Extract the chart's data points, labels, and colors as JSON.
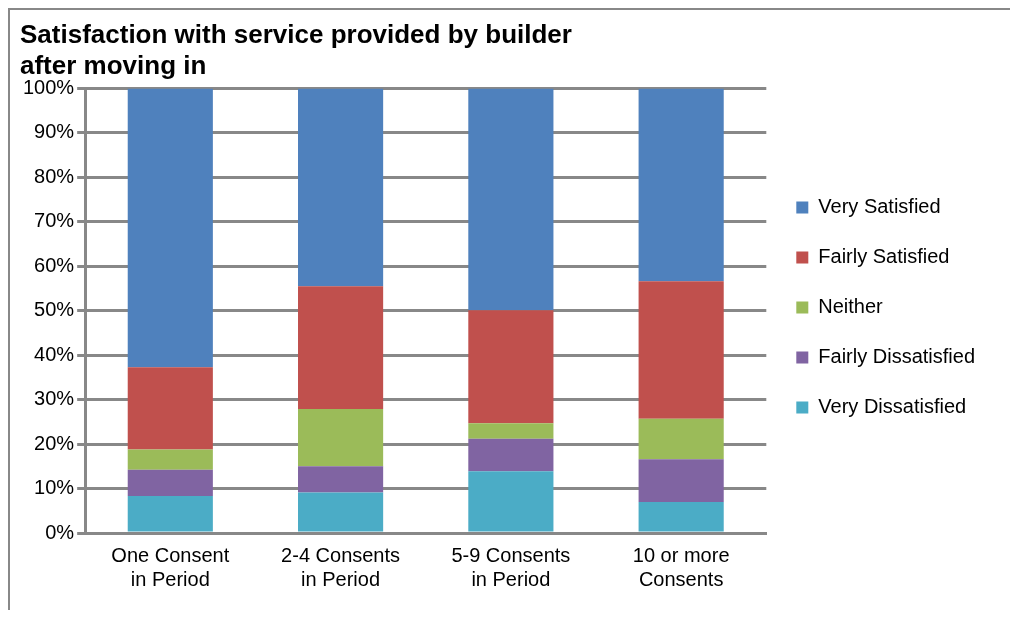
{
  "chart_data": {
    "type": "bar",
    "title": "Satisfaction with service provided by builder after moving in",
    "categories": [
      "One Consent in Period",
      "2-4 Consents in Period",
      "5-9 Consents in Period",
      "10 or more Consents"
    ],
    "stacked": true,
    "ylim": [
      0,
      100
    ],
    "yticks": [
      {
        "value": 0,
        "label": "0%"
      },
      {
        "value": 10,
        "label": "10%"
      },
      {
        "value": 20,
        "label": "20%"
      },
      {
        "value": 30,
        "label": "30%"
      },
      {
        "value": 40,
        "label": "40%"
      },
      {
        "value": 50,
        "label": "50%"
      },
      {
        "value": 60,
        "label": "60%"
      },
      {
        "value": 70,
        "label": "70%"
      },
      {
        "value": 80,
        "label": "80%"
      },
      {
        "value": 90,
        "label": "90%"
      },
      {
        "value": 100,
        "label": "100%"
      }
    ],
    "grid": "y",
    "legend": "right",
    "series": [
      {
        "name": "Very Dissatisfied",
        "color": "#4bacc6",
        "values": [
          8.3,
          9.1,
          13.9,
          7.0
        ]
      },
      {
        "name": "Fairly Dissatisfied",
        "color": "#8064a2",
        "values": [
          5.9,
          5.9,
          7.3,
          9.6
        ]
      },
      {
        "name": "Neither",
        "color": "#9bbb59",
        "values": [
          4.6,
          12.9,
          3.5,
          9.1
        ]
      },
      {
        "name": "Fairly Satisfied",
        "color": "#c0504d",
        "values": [
          18.5,
          27.6,
          25.4,
          30.9
        ]
      },
      {
        "name": "Very Satisfied",
        "color": "#4f81bd",
        "values": [
          62.7,
          44.5,
          49.9,
          43.4
        ]
      }
    ]
  }
}
